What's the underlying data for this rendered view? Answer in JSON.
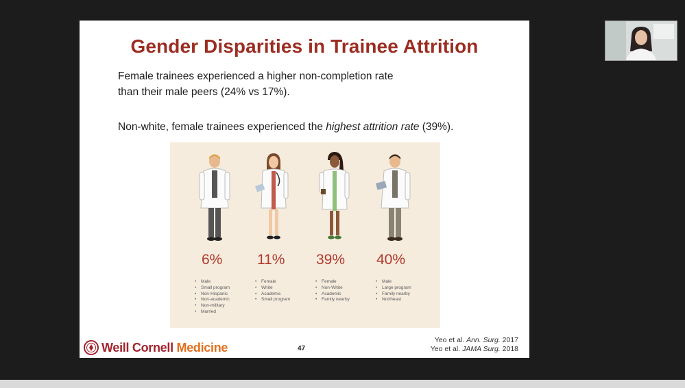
{
  "slide": {
    "title": "Gender Disparities in Trainee Attrition",
    "para1_line1": "Female trainees experienced a higher non-completion rate",
    "para1_line2": "than their male peers (24% vs 17%).",
    "para2_pre": "Non-white, female trainees experienced the ",
    "para2_em": "highest attrition rate",
    "para2_post": " (39%).",
    "groups": [
      {
        "percent": "6%",
        "traits": [
          "Male",
          "Small program",
          "Non-Hispanic",
          "Non-academic",
          "Non-military",
          "Married"
        ]
      },
      {
        "percent": "11%",
        "traits": [
          "Female",
          "White",
          "Academic",
          "Small program"
        ]
      },
      {
        "percent": "39%",
        "traits": [
          "Female",
          "Non-White",
          "Academic",
          "Family nearby"
        ]
      },
      {
        "percent": "40%",
        "traits": [
          "Male",
          "Large program",
          "Family nearby",
          "Northeast"
        ]
      }
    ],
    "logo_part1": "Weill Cornell ",
    "logo_part2": "Medicine",
    "page_number": "47",
    "citation1_pre": "Yeo et al. ",
    "citation1_journal": "Ann. Surg.",
    "citation1_year": " 2017",
    "citation2_pre": "Yeo et al. ",
    "citation2_journal": "JAMA Surg.",
    "citation2_year": " 2018"
  },
  "colors": {
    "title": "#9b2d22",
    "percent": "#b0392c",
    "panel_bg": "#f5ecde",
    "logo_red": "#a3232c",
    "logo_orange": "#e36f1e"
  }
}
